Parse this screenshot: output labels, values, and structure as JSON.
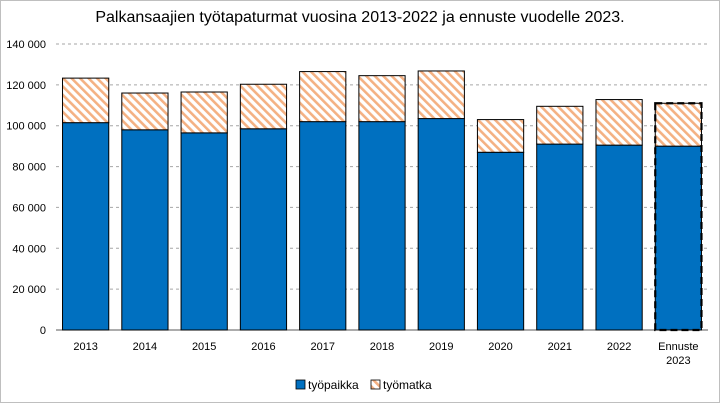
{
  "chart_data": {
    "type": "bar",
    "stacked": true,
    "title": "Palkansaajien työtapaturmat vuosina 2013-2022 ja ennuste vuodelle 2023.",
    "categories": [
      "2013",
      "2014",
      "2015",
      "2016",
      "2017",
      "2018",
      "2019",
      "2020",
      "2021",
      "2022",
      "Ennuste 2023"
    ],
    "category_lines": [
      [
        "2013"
      ],
      [
        "2014"
      ],
      [
        "2015"
      ],
      [
        "2016"
      ],
      [
        "2017"
      ],
      [
        "2018"
      ],
      [
        "2019"
      ],
      [
        "2020"
      ],
      [
        "2021"
      ],
      [
        "2022"
      ],
      [
        "Ennuste",
        "2023"
      ]
    ],
    "series": [
      {
        "name": "työpaikka",
        "color": "#0070C0",
        "values": [
          101500,
          98000,
          96500,
          98500,
          102000,
          102000,
          103500,
          87000,
          91000,
          90500,
          90000
        ]
      },
      {
        "name": "työmatka",
        "color": "#F4B183",
        "pattern": "diagonal-hatch",
        "values": [
          21800,
          18000,
          20000,
          21800,
          24500,
          22500,
          23300,
          16000,
          18500,
          22300,
          21000
        ]
      }
    ],
    "forecast_category": "Ennuste 2023",
    "ylim": [
      0,
      140000
    ],
    "yticks": [
      0,
      20000,
      40000,
      60000,
      80000,
      100000,
      120000,
      140000
    ],
    "ytick_labels": [
      "0",
      "20 000",
      "40 000",
      "60 000",
      "80 000",
      "100 000",
      "120 000",
      "140 000"
    ],
    "grid": true,
    "legend_position": "bottom"
  }
}
